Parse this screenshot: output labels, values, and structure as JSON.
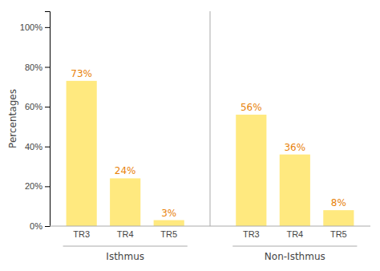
{
  "chart_data": {
    "type": "bar",
    "ylabel": "Percentages",
    "categories": [
      "TR3",
      "TR4",
      "TR5"
    ],
    "series": [
      {
        "name": "Isthmus",
        "values": [
          73,
          24,
          3
        ],
        "value_labels": [
          "73%",
          "24%",
          "3%"
        ]
      },
      {
        "name": "Non-Isthmus",
        "values": [
          56,
          36,
          8
        ],
        "value_labels": [
          "56%",
          "36%",
          "8%"
        ]
      }
    ],
    "color": "#FFE97F",
    "ylim": [
      0,
      108
    ],
    "yticks": [
      {
        "value": 0,
        "label": "0%"
      },
      {
        "value": 20,
        "label": "20%"
      },
      {
        "value": 40,
        "label": "40%"
      },
      {
        "value": 60,
        "label": "60%"
      },
      {
        "value": 80,
        "label": "80%"
      },
      {
        "value": 100,
        "label": "100%"
      }
    ],
    "grid": false,
    "data_labels": true
  }
}
